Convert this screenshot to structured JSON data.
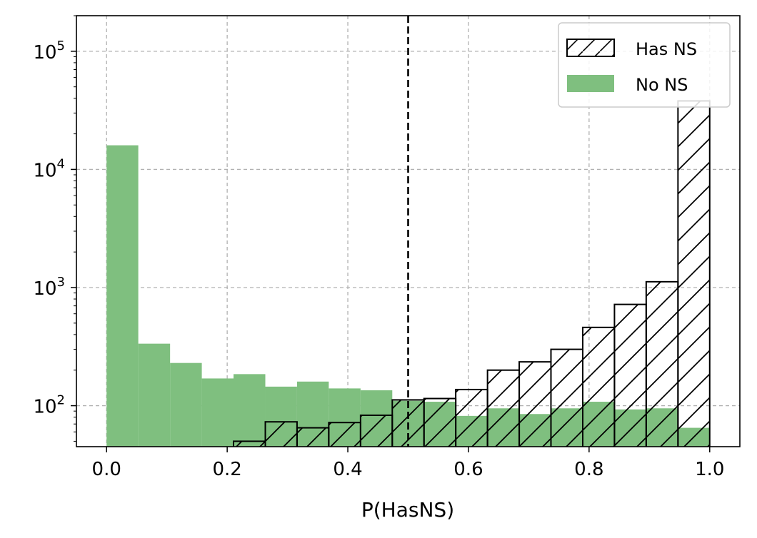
{
  "chart_data": {
    "type": "bar",
    "xlabel": "P(HasNS)",
    "ylabel": "",
    "yscale": "log",
    "xlim": [
      -0.05,
      1.05
    ],
    "ylim": [
      45,
      200000
    ],
    "grid": true,
    "legend_placement": "top-right",
    "bin_edges": [
      0.0,
      0.0526,
      0.1053,
      0.1579,
      0.2105,
      0.2632,
      0.3158,
      0.3684,
      0.4211,
      0.4737,
      0.5263,
      0.5789,
      0.6316,
      0.6842,
      0.7368,
      0.7895,
      0.8421,
      0.8947,
      0.9474,
      1.0
    ],
    "series": [
      {
        "name": "Has NS",
        "style": "hatched-outline",
        "color": "#000000",
        "values": [
          0,
          0,
          0,
          0,
          50,
          73,
          65,
          72,
          83,
          112,
          115,
          137,
          200,
          235,
          300,
          460,
          720,
          1120,
          38000
        ]
      },
      {
        "name": "No NS",
        "style": "filled",
        "color": "#7fbf7f",
        "values": [
          16000,
          335,
          230,
          170,
          185,
          145,
          160,
          140,
          135,
          110,
          108,
          82,
          95,
          85,
          95,
          108,
          93,
          95,
          65
        ]
      }
    ],
    "threshold_line": {
      "x": 0.5,
      "style": "dashed",
      "color": "#000000"
    },
    "x_ticks": [
      {
        "value": 0.0,
        "label": "0.0"
      },
      {
        "value": 0.2,
        "label": "0.2"
      },
      {
        "value": 0.4,
        "label": "0.4"
      },
      {
        "value": 0.6,
        "label": "0.6"
      },
      {
        "value": 0.8,
        "label": "0.8"
      },
      {
        "value": 1.0,
        "label": "1.0"
      }
    ],
    "y_ticks": [
      {
        "value": 100,
        "base": "10",
        "exp": "2"
      },
      {
        "value": 1000,
        "base": "10",
        "exp": "3"
      },
      {
        "value": 10000,
        "base": "10",
        "exp": "4"
      },
      {
        "value": 100000,
        "base": "10",
        "exp": "5"
      }
    ]
  }
}
